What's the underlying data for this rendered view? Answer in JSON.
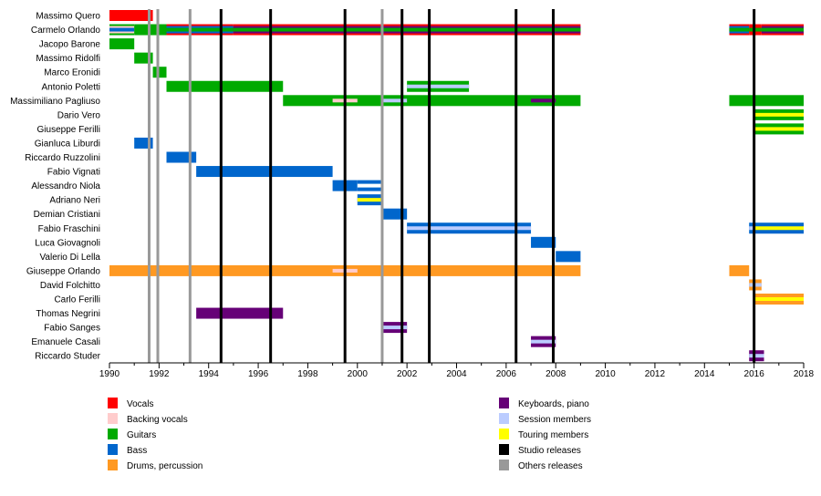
{
  "chart_data": {
    "type": "timeline",
    "title": "",
    "xlabel": "",
    "ylabel": "",
    "xlim": [
      1990,
      2018
    ],
    "x_ticks": [
      "1990",
      "1992",
      "1994",
      "1996",
      "1998",
      "2000",
      "2002",
      "2004",
      "2006",
      "2008",
      "2010",
      "2012",
      "2014",
      "2016",
      "2018"
    ],
    "colors": {
      "vocals": "#ff0000",
      "backing": "#ffcccc",
      "guitars": "#00aa00",
      "bass": "#0066cc",
      "drums": "#ff9922",
      "keys": "#660077",
      "session": "#bbccff",
      "touring": "#ffff00",
      "studio": "#000000",
      "others": "#999999"
    },
    "members": [
      {
        "name": "Massimo Quero",
        "bars": [
          {
            "from": 1990,
            "to": 1991.75,
            "role": "vocals"
          }
        ]
      },
      {
        "name": "Carmelo Orlando",
        "bars": [
          {
            "from": 1990,
            "to": 1991.0,
            "role": "guitars",
            "stripes": [
              "bass",
              "backing"
            ]
          },
          {
            "from": 1991.0,
            "to": 1992.3,
            "role": "guitars"
          },
          {
            "from": 1992.3,
            "to": 1995.0,
            "role": "vocals",
            "stripes": [
              "guitars",
              "bass"
            ]
          },
          {
            "from": 1995.0,
            "to": 2009.0,
            "role": "vocals",
            "stripes": [
              "guitars",
              "keys"
            ]
          },
          {
            "from": 2015.0,
            "to": 2015.8,
            "role": "vocals",
            "stripes": [
              "guitars",
              "bass"
            ]
          },
          {
            "from": 2015.8,
            "to": 2016.3,
            "role": "vocals",
            "stripes": [
              "guitars"
            ]
          },
          {
            "from": 2016.3,
            "to": 2018.0,
            "role": "vocals",
            "stripes": [
              "guitars",
              "keys"
            ]
          }
        ]
      },
      {
        "name": "Jacopo Barone",
        "bars": [
          {
            "from": 1990,
            "to": 1991.0,
            "role": "guitars"
          }
        ]
      },
      {
        "name": "Massimo Ridolfi",
        "bars": [
          {
            "from": 1991.0,
            "to": 1991.75,
            "role": "guitars"
          }
        ]
      },
      {
        "name": "Marco Eronidi",
        "bars": [
          {
            "from": 1991.75,
            "to": 1992.3,
            "role": "guitars"
          }
        ]
      },
      {
        "name": "Antonio Poletti",
        "bars": [
          {
            "from": 1992.3,
            "to": 1997.0,
            "role": "guitars"
          },
          {
            "from": 2002.0,
            "to": 2004.5,
            "role": "guitars",
            "stripes": [
              "session"
            ]
          }
        ]
      },
      {
        "name": "Massimiliano Pagliuso",
        "bars": [
          {
            "from": 1997.0,
            "to": 2009.0,
            "role": "guitars"
          },
          {
            "from": 1999.0,
            "to": 2000.0,
            "role": "backing",
            "inner": true
          },
          {
            "from": 2001.0,
            "to": 2002.0,
            "role": "session",
            "inner": true
          },
          {
            "from": 2007.0,
            "to": 2008.0,
            "role": "keys",
            "inner": true
          },
          {
            "from": 2015.0,
            "to": 2018.0,
            "role": "guitars"
          }
        ]
      },
      {
        "name": "Dario Vero",
        "bars": [
          {
            "from": 2016.0,
            "to": 2018.0,
            "role": "guitars",
            "stripes": [
              "touring"
            ]
          }
        ]
      },
      {
        "name": "Giuseppe Ferilli",
        "bars": [
          {
            "from": 2016.0,
            "to": 2018.0,
            "role": "guitars",
            "stripes": [
              "touring"
            ]
          }
        ]
      },
      {
        "name": "Gianluca Liburdi",
        "bars": [
          {
            "from": 1991.0,
            "to": 1991.75,
            "role": "bass"
          }
        ]
      },
      {
        "name": "Riccardo Ruzzolini",
        "bars": [
          {
            "from": 1992.3,
            "to": 1993.5,
            "role": "bass"
          }
        ]
      },
      {
        "name": "Fabio Vignati",
        "bars": [
          {
            "from": 1993.5,
            "to": 1999.0,
            "role": "bass"
          }
        ]
      },
      {
        "name": "Alessandro Niola",
        "bars": [
          {
            "from": 1999.0,
            "to": 2000.0,
            "role": "bass"
          },
          {
            "from": 2000.0,
            "to": 2001.0,
            "role": "bass",
            "stripes": [
              "white"
            ]
          }
        ]
      },
      {
        "name": "Adriano Neri",
        "bars": [
          {
            "from": 2000.0,
            "to": 2001.0,
            "role": "bass",
            "stripes": [
              "touring"
            ]
          }
        ]
      },
      {
        "name": "Demian Cristiani",
        "bars": [
          {
            "from": 2001.0,
            "to": 2002.0,
            "role": "bass"
          }
        ]
      },
      {
        "name": "Fabio Fraschini",
        "bars": [
          {
            "from": 2002.0,
            "to": 2007.0,
            "role": "bass",
            "stripes": [
              "session"
            ]
          },
          {
            "from": 2015.8,
            "to": 2016.0,
            "role": "bass",
            "stripes": [
              "session"
            ]
          },
          {
            "from": 2016.0,
            "to": 2018.0,
            "role": "bass",
            "stripes": [
              "touring"
            ]
          }
        ]
      },
      {
        "name": "Luca Giovagnoli",
        "bars": [
          {
            "from": 2007.0,
            "to": 2008.0,
            "role": "bass"
          }
        ]
      },
      {
        "name": "Valerio Di Lella",
        "bars": [
          {
            "from": 2008.0,
            "to": 2009.0,
            "role": "bass"
          }
        ]
      },
      {
        "name": "Giuseppe Orlando",
        "bars": [
          {
            "from": 1990,
            "to": 2009.0,
            "role": "drums"
          },
          {
            "from": 1999.0,
            "to": 2000.0,
            "role": "backing",
            "inner": true
          },
          {
            "from": 2015.0,
            "to": 2015.8,
            "role": "drums"
          }
        ]
      },
      {
        "name": "David Folchitto",
        "bars": [
          {
            "from": 2015.8,
            "to": 2016.3,
            "role": "drums",
            "stripes": [
              "session"
            ]
          }
        ]
      },
      {
        "name": "Carlo Ferilli",
        "bars": [
          {
            "from": 2016.0,
            "to": 2018.0,
            "role": "drums",
            "stripes": [
              "touring"
            ]
          }
        ]
      },
      {
        "name": "Thomas Negrini",
        "bars": [
          {
            "from": 1993.5,
            "to": 1997.0,
            "role": "keys"
          }
        ]
      },
      {
        "name": "Fabio Sanges",
        "bars": [
          {
            "from": 2001.0,
            "to": 2002.0,
            "role": "keys",
            "stripes": [
              "session"
            ]
          }
        ]
      },
      {
        "name": "Emanuele Casali",
        "bars": [
          {
            "from": 2007.0,
            "to": 2008.0,
            "role": "keys",
            "stripes": [
              "session"
            ]
          }
        ]
      },
      {
        "name": "Riccardo Studer",
        "bars": [
          {
            "from": 2015.8,
            "to": 2016.4,
            "role": "keys",
            "stripes": [
              "session"
            ]
          }
        ]
      }
    ],
    "studio_releases": [
      1994.5,
      1996.5,
      1999.5,
      2001.8,
      2002.9,
      2006.4,
      2007.9,
      2016.0
    ],
    "other_releases": [
      1991.6,
      1991.95,
      1993.25,
      2001.0
    ],
    "legend": [
      {
        "label": "Vocals",
        "key": "vocals",
        "column": "left"
      },
      {
        "label": "Backing vocals",
        "key": "backing",
        "column": "left"
      },
      {
        "label": "Guitars",
        "key": "guitars",
        "column": "left"
      },
      {
        "label": "Bass",
        "key": "bass",
        "column": "left"
      },
      {
        "label": "Drums, percussion",
        "key": "drums",
        "column": "left"
      },
      {
        "label": "Keyboards, piano",
        "key": "keys",
        "column": "right"
      },
      {
        "label": "Session members",
        "key": "session",
        "column": "right"
      },
      {
        "label": "Touring members",
        "key": "touring",
        "column": "right"
      },
      {
        "label": "Studio releases",
        "key": "studio",
        "column": "right"
      },
      {
        "label": "Others releases",
        "key": "others",
        "column": "right"
      }
    ],
    "legend_placement": "bottom"
  }
}
